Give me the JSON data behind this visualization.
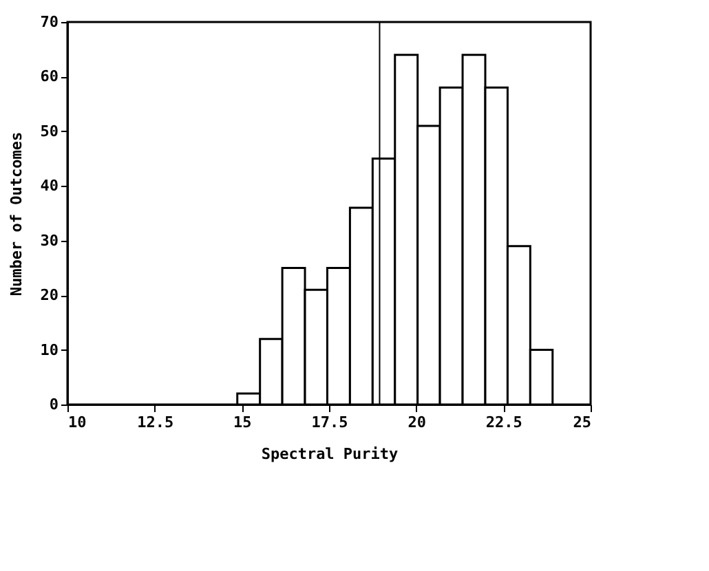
{
  "chart_data": {
    "type": "histogram",
    "xlabel": "Spectral Purity",
    "ylabel": "Number of Outcomes",
    "bins": [
      14.87,
      15.52,
      16.16,
      16.81,
      17.45,
      18.1,
      18.75,
      19.39,
      20.04,
      20.68,
      21.33,
      21.98,
      22.62,
      23.27,
      23.91
    ],
    "values": [
      2,
      12,
      25,
      21,
      25,
      36,
      45,
      64,
      51,
      58,
      64,
      58,
      29,
      10
    ],
    "color": "#ffffff",
    "xlim": [
      10,
      25
    ],
    "xticks": [
      10,
      12.5,
      15,
      17.5,
      20,
      22.5,
      25
    ],
    "ylim": [
      0,
      70
    ],
    "yticks": [
      0,
      10,
      20,
      30,
      40,
      50,
      60,
      70
    ],
    "ref_lines": [
      {
        "axis": "x",
        "value": 18.95,
        "color": "#000000"
      }
    ],
    "grid": false
  }
}
